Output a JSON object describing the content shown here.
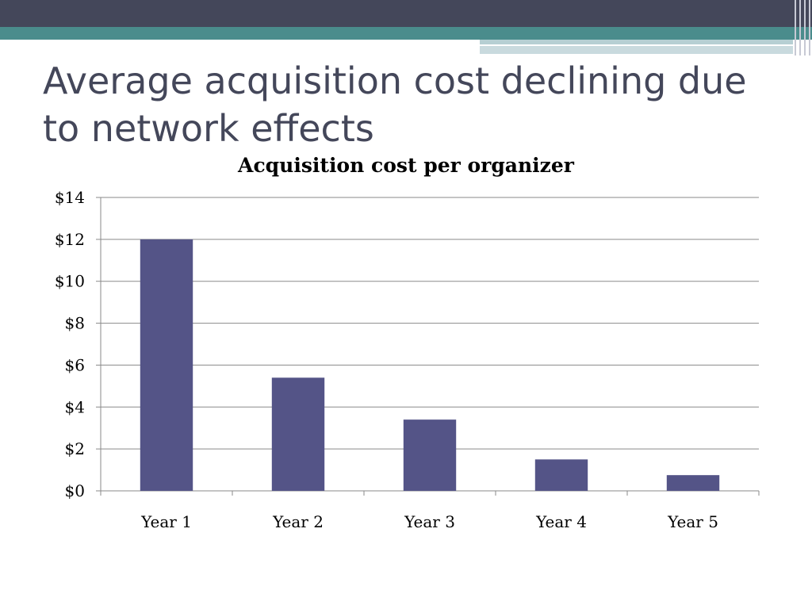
{
  "slide": {
    "title": "Average acquisition cost declining due to network effects"
  },
  "colors": {
    "header_dark": "#44475a",
    "header_teal": "#4a8c8c",
    "bar": "#545487",
    "grid": "#8a8a8a",
    "title_text": "#44475a"
  },
  "chart_data": {
    "type": "bar",
    "title": "Acquisition cost per organizer",
    "categories": [
      "Year 1",
      "Year 2",
      "Year 3",
      "Year 4",
      "Year 5"
    ],
    "values": [
      12,
      5.4,
      3.4,
      1.5,
      0.75
    ],
    "ylim": [
      0,
      14
    ],
    "yticks": [
      0,
      2,
      4,
      6,
      8,
      10,
      12,
      14
    ],
    "ytick_labels": [
      "$0",
      "$2",
      "$4",
      "$6",
      "$8",
      "$10",
      "$12",
      "$14"
    ],
    "xlabel": "",
    "ylabel": "",
    "grid": true,
    "legend": "none"
  }
}
